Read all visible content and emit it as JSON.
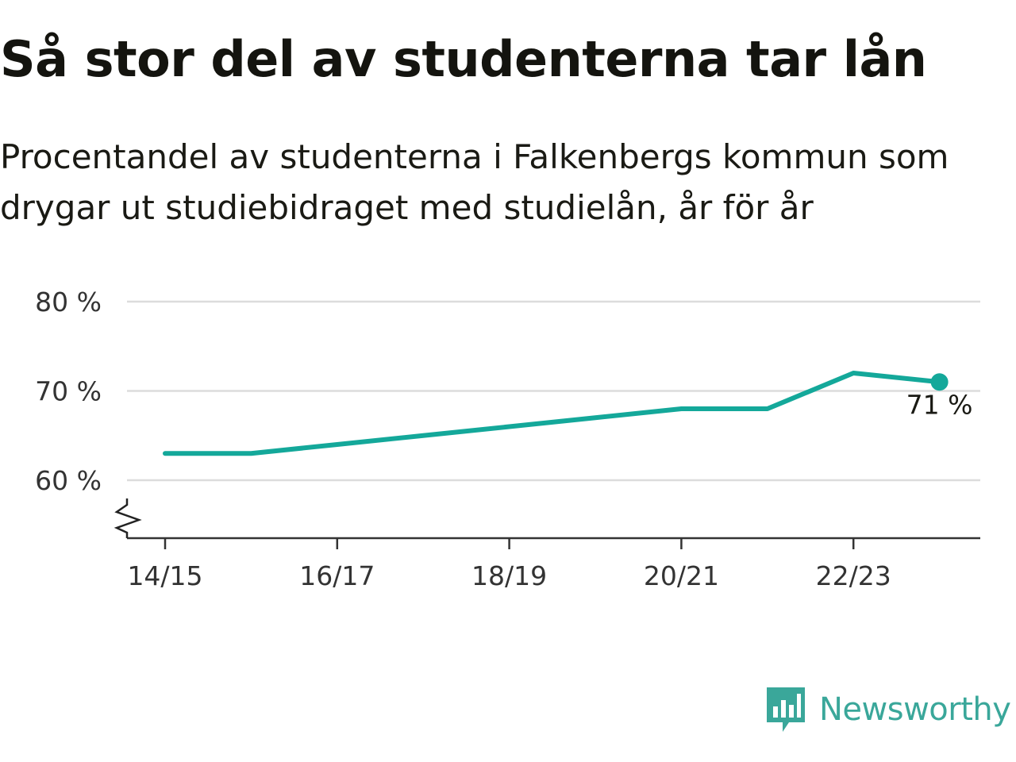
{
  "title": "Så stor del av studenterna tar lån",
  "subtitle": "Procentandel av studenterna i Falkenbergs kommun som drygar ut studiebidraget med studielån, år för år",
  "brand": {
    "name": "Newsworthy",
    "color": "#3aa79a"
  },
  "chart_data": {
    "type": "line",
    "x": [
      "14/15",
      "15/16",
      "16/17",
      "17/18",
      "18/19",
      "19/20",
      "20/21",
      "21/22",
      "22/23",
      "23/24"
    ],
    "x_tick_labels": [
      "14/15",
      "16/17",
      "18/19",
      "20/21",
      "22/23"
    ],
    "series": [
      {
        "values": [
          63,
          63,
          64,
          65,
          66,
          67,
          68,
          68,
          72,
          71
        ],
        "color": "#14a89a"
      }
    ],
    "y_ticks": [
      60,
      70,
      80
    ],
    "y_tick_labels": [
      "60 %",
      "70 %",
      "80 %"
    ],
    "ylim": [
      53.5,
      80
    ],
    "axis_break": true,
    "end_label": "71 %",
    "grid": true
  }
}
